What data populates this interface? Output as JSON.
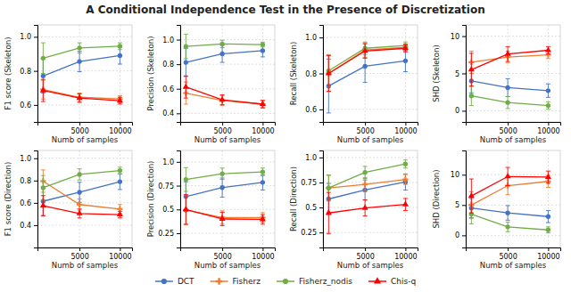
{
  "title": "A Conditional Independence Test in the Presence of Discretization",
  "legend": "bottom",
  "chart_data": [
    {
      "type": "line",
      "x_label": "Numb of samples",
      "y_label": "F1 score (Skeleton)",
      "x": [
        500,
        5000,
        10000
      ],
      "xlim": [
        -200,
        11500
      ],
      "xticks": [
        5000,
        10000
      ],
      "ylim": [
        0.5,
        1.07
      ],
      "yticks": [
        0.6,
        0.8,
        {
          "value": 1.0,
          "label": "1.0"
        }
      ],
      "grid": true,
      "series": [
        {
          "name": "DCT",
          "color": "#4472c4",
          "marker": "circle",
          "values": [
            0.77,
            0.855,
            0.89
          ],
          "errors": [
            0.1,
            0.06,
            0.05
          ]
        },
        {
          "name": "Fisherz",
          "color": "#ed7d31",
          "marker": "plus",
          "values": [
            0.69,
            0.645,
            0.635
          ],
          "errors": [
            0.055,
            0.025,
            0.02
          ]
        },
        {
          "name": "Fisherz_nodis",
          "color": "#70ad47",
          "marker": "circle",
          "values": [
            0.875,
            0.935,
            0.945
          ],
          "errors": [
            0.09,
            0.03,
            0.02
          ]
        },
        {
          "name": "Chis-q",
          "color": "#ff0000",
          "marker": "triangle",
          "values": [
            0.685,
            0.64,
            0.625
          ],
          "errors": [
            0.065,
            0.025,
            0.02
          ]
        }
      ]
    },
    {
      "type": "line",
      "x_label": "Numb of samples",
      "y_label": "Precision (Skeleton)",
      "x": [
        500,
        5000,
        10000
      ],
      "xlim": [
        -200,
        11500
      ],
      "xticks": [
        5000,
        10000
      ],
      "ylim": [
        0.33,
        1.12
      ],
      "yticks": [
        0.4,
        0.6,
        0.8,
        {
          "value": 1.0,
          "label": "1.0"
        }
      ],
      "grid": true,
      "series": [
        {
          "name": "DCT",
          "color": "#4472c4",
          "marker": "circle",
          "values": [
            0.815,
            0.885,
            0.91
          ],
          "errors": [
            0.115,
            0.07,
            0.05
          ]
        },
        {
          "name": "Fisherz",
          "color": "#ed7d31",
          "marker": "plus",
          "values": [
            0.565,
            0.505,
            0.475
          ],
          "errors": [
            0.09,
            0.04,
            0.03
          ]
        },
        {
          "name": "Fisherz_nodis",
          "color": "#70ad47",
          "marker": "circle",
          "values": [
            0.945,
            0.965,
            0.96
          ],
          "errors": [
            0.1,
            0.03,
            0.02
          ]
        },
        {
          "name": "Chis-q",
          "color": "#ff0000",
          "marker": "triangle",
          "values": [
            0.615,
            0.51,
            0.475
          ],
          "errors": [
            0.09,
            0.04,
            0.03
          ]
        }
      ]
    },
    {
      "type": "line",
      "x_label": "Numb of samples",
      "y_label": "Recall (Skeleton)",
      "x": [
        500,
        5000,
        10000
      ],
      "xlim": [
        -200,
        11500
      ],
      "xticks": [
        5000,
        10000
      ],
      "ylim": [
        0.53,
        1.07
      ],
      "yticks": [
        0.6,
        0.8,
        {
          "value": 1.0,
          "label": "1.0"
        }
      ],
      "grid": true,
      "series": [
        {
          "name": "DCT",
          "color": "#4472c4",
          "marker": "circle",
          "values": [
            0.73,
            0.84,
            0.87
          ],
          "errors": [
            0.15,
            0.09,
            0.06
          ]
        },
        {
          "name": "Fisherz",
          "color": "#ed7d31",
          "marker": "plus",
          "values": [
            0.8,
            0.93,
            0.945
          ],
          "errors": [
            0.1,
            0.04,
            0.02
          ]
        },
        {
          "name": "Fisherz_nodis",
          "color": "#70ad47",
          "marker": "circle",
          "values": [
            0.815,
            0.94,
            0.955
          ],
          "errors": [
            0.09,
            0.035,
            0.02
          ]
        },
        {
          "name": "Chis-q",
          "color": "#ff0000",
          "marker": "triangle",
          "values": [
            0.8,
            0.925,
            0.94
          ],
          "errors": [
            0.1,
            0.04,
            0.02
          ]
        }
      ]
    },
    {
      "type": "line",
      "x_label": "Numb of samples",
      "y_label": "SHD (Skeleton)",
      "x": [
        500,
        5000,
        10000
      ],
      "xlim": [
        -200,
        11500
      ],
      "xticks": [
        5000,
        10000
      ],
      "ylim": [
        -1.5,
        11.5
      ],
      "yticks": [
        0,
        5,
        10
      ],
      "grid": true,
      "series": [
        {
          "name": "DCT",
          "color": "#4472c4",
          "marker": "circle",
          "values": [
            4.0,
            3.1,
            2.7
          ],
          "errors": [
            1.6,
            1.2,
            0.9
          ]
        },
        {
          "name": "Fisherz",
          "color": "#ed7d31",
          "marker": "plus",
          "values": [
            6.5,
            7.2,
            7.5
          ],
          "errors": [
            1.5,
            0.8,
            0.5
          ]
        },
        {
          "name": "Fisherz_nodis",
          "color": "#70ad47",
          "marker": "circle",
          "values": [
            2.0,
            1.1,
            0.7
          ],
          "errors": [
            1.3,
            0.8,
            0.5
          ]
        },
        {
          "name": "Chis-q",
          "color": "#ff0000",
          "marker": "triangle",
          "values": [
            5.5,
            7.6,
            8.1
          ],
          "errors": [
            2.2,
            1.0,
            0.5
          ]
        }
      ]
    },
    {
      "type": "line",
      "x_label": "Numb of samples",
      "y_label": "F1 score (Direction)",
      "x": [
        500,
        5000,
        10000
      ],
      "xlim": [
        -200,
        11500
      ],
      "xticks": [
        5000,
        10000
      ],
      "ylim": [
        0.2,
        1.07
      ],
      "yticks": [
        0.4,
        0.6,
        0.8,
        {
          "value": 1.0,
          "label": "1.0"
        }
      ],
      "grid": true,
      "series": [
        {
          "name": "DCT",
          "color": "#4472c4",
          "marker": "circle",
          "values": [
            0.615,
            0.695,
            0.79
          ],
          "errors": [
            0.13,
            0.09,
            0.07
          ]
        },
        {
          "name": "Fisherz",
          "color": "#ed7d31",
          "marker": "plus",
          "values": [
            0.795,
            0.585,
            0.545
          ],
          "errors": [
            0.1,
            0.05,
            0.04
          ]
        },
        {
          "name": "Fisherz_nodis",
          "color": "#70ad47",
          "marker": "circle",
          "values": [
            0.735,
            0.855,
            0.89
          ],
          "errors": [
            0.11,
            0.05,
            0.03
          ]
        },
        {
          "name": "Chis-q",
          "color": "#ff0000",
          "marker": "triangle",
          "values": [
            0.575,
            0.505,
            0.495
          ],
          "errors": [
            0.09,
            0.04,
            0.03
          ]
        }
      ]
    },
    {
      "type": "line",
      "x_label": "Numb of samples",
      "y_label": "Precision (Direction)",
      "x": [
        500,
        5000,
        10000
      ],
      "xlim": [
        -200,
        11500
      ],
      "xticks": [
        5000,
        10000
      ],
      "ylim": [
        0.1,
        1.12
      ],
      "yticks": [
        0.25,
        {
          "value": 0.5,
          "label": "0.5"
        },
        0.75,
        {
          "value": 1.0,
          "label": "1.0"
        }
      ],
      "grid": true,
      "series": [
        {
          "name": "DCT",
          "color": "#4472c4",
          "marker": "circle",
          "values": [
            0.635,
            0.73,
            0.785
          ],
          "errors": [
            0.155,
            0.1,
            0.08
          ]
        },
        {
          "name": "Fisherz",
          "color": "#ed7d31",
          "marker": "plus",
          "values": [
            0.495,
            0.415,
            0.415
          ],
          "errors": [
            0.155,
            0.07,
            0.05
          ]
        },
        {
          "name": "Fisherz_nodis",
          "color": "#70ad47",
          "marker": "circle",
          "values": [
            0.815,
            0.875,
            0.895
          ],
          "errors": [
            0.125,
            0.06,
            0.04
          ]
        },
        {
          "name": "Chis-q",
          "color": "#ff0000",
          "marker": "triangle",
          "values": [
            0.5,
            0.4,
            0.395
          ],
          "errors": [
            0.155,
            0.07,
            0.05
          ]
        }
      ]
    },
    {
      "type": "line",
      "x_label": "Numb of samples",
      "y_label": "Recall (Direction)",
      "x": [
        500,
        5000,
        10000
      ],
      "xlim": [
        -200,
        11500
      ],
      "xticks": [
        5000,
        10000
      ],
      "ylim": [
        0.1,
        1.07
      ],
      "yticks": [
        0.25,
        {
          "value": 0.5,
          "label": "0.5"
        },
        0.75,
        {
          "value": 1.0,
          "label": "1.0"
        }
      ],
      "grid": true,
      "series": [
        {
          "name": "DCT",
          "color": "#4472c4",
          "marker": "circle",
          "values": [
            0.585,
            0.675,
            0.755
          ],
          "errors": [
            0.155,
            0.1,
            0.08
          ]
        },
        {
          "name": "Fisherz",
          "color": "#ed7d31",
          "marker": "plus",
          "values": [
            0.695,
            0.73,
            0.78
          ],
          "errors": [
            0.125,
            0.07,
            0.05
          ]
        },
        {
          "name": "Fisherz_nodis",
          "color": "#70ad47",
          "marker": "circle",
          "values": [
            0.695,
            0.85,
            0.935
          ],
          "errors": [
            0.13,
            0.06,
            0.04
          ]
        },
        {
          "name": "Chis-q",
          "color": "#ff0000",
          "marker": "triangle",
          "values": [
            0.445,
            0.495,
            0.53
          ],
          "errors": [
            0.205,
            0.08,
            0.06
          ]
        }
      ]
    },
    {
      "type": "line",
      "x_label": "Numb of samples",
      "y_label": "SHD (Direction)",
      "x": [
        500,
        5000,
        10000
      ],
      "xlim": [
        -200,
        11500
      ],
      "xticks": [
        5000,
        10000
      ],
      "ylim": [
        -2.0,
        14.0
      ],
      "yticks": [
        0,
        5,
        10
      ],
      "grid": true,
      "series": [
        {
          "name": "DCT",
          "color": "#4472c4",
          "marker": "circle",
          "values": [
            4.5,
            3.7,
            3.1
          ],
          "errors": [
            1.6,
            1.2,
            1.0
          ]
        },
        {
          "name": "Fisherz",
          "color": "#ed7d31",
          "marker": "plus",
          "values": [
            5.0,
            8.2,
            8.9
          ],
          "errors": [
            2.2,
            1.5,
            1.0
          ]
        },
        {
          "name": "Fisherz_nodis",
          "color": "#70ad47",
          "marker": "circle",
          "values": [
            3.5,
            1.4,
            0.9
          ],
          "errors": [
            1.6,
            0.8,
            0.5
          ]
        },
        {
          "name": "Chis-q",
          "color": "#ff0000",
          "marker": "triangle",
          "values": [
            6.5,
            9.7,
            9.6
          ],
          "errors": [
            2.8,
            1.5,
            1.0
          ]
        }
      ]
    }
  ]
}
